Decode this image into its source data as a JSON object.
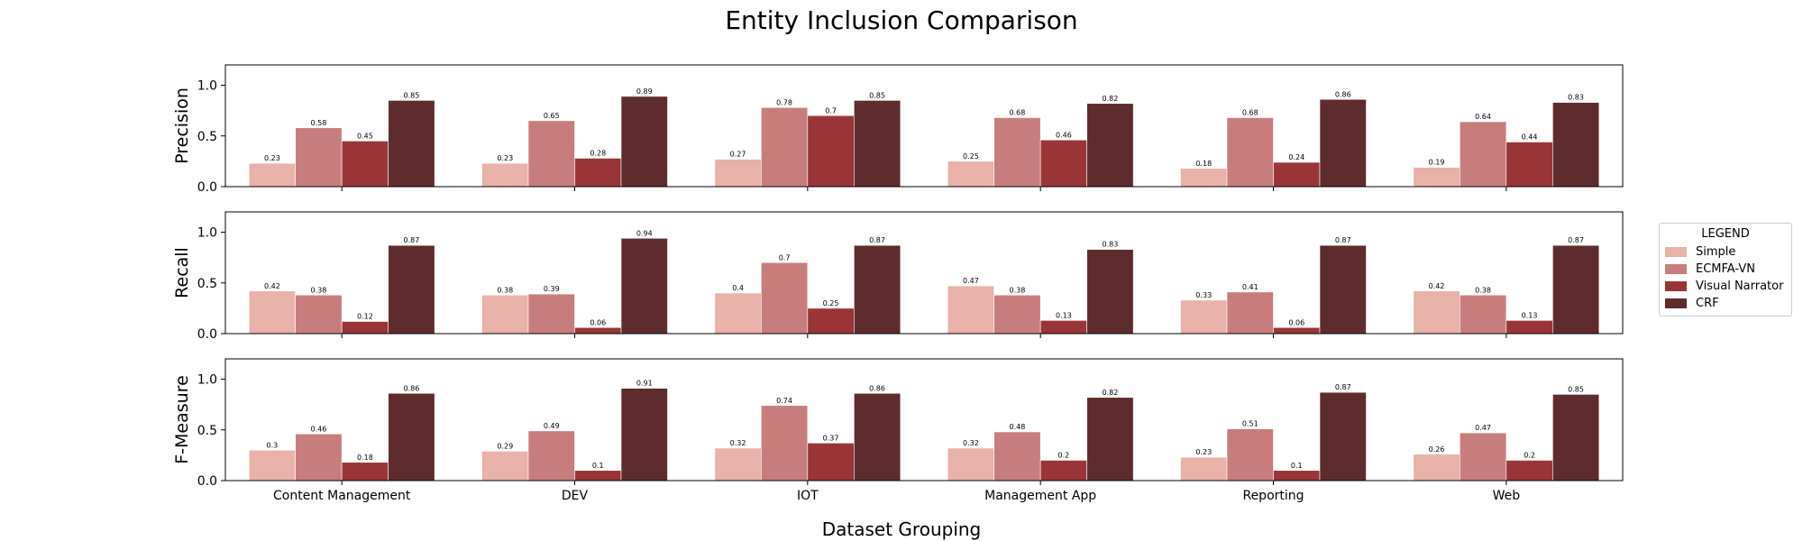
{
  "chart_data": {
    "type": "bar",
    "title": "Entity Inclusion Comparison",
    "xlabel": "Dataset Grouping",
    "categories": [
      "Content Management",
      "DEV",
      "IOT",
      "Management App",
      "Reporting",
      "Web"
    ],
    "legend": {
      "title": "LEGEND",
      "placement": "outside-right",
      "entries": [
        "Simple",
        "ECMFA-VN",
        "Visual Narrator",
        "CRF"
      ]
    },
    "colors": [
      "#e8b2a8",
      "#c87d7d",
      "#9a3537",
      "#5f2c2e"
    ],
    "ylim": [
      0,
      1.2
    ],
    "yticks": [
      0.0,
      0.5,
      1.0
    ],
    "grid": false,
    "panels": [
      {
        "ylabel": "Precision",
        "series": [
          {
            "name": "Simple",
            "values": [
              0.23,
              0.23,
              0.27,
              0.25,
              0.18,
              0.19
            ]
          },
          {
            "name": "ECMFA-VN",
            "values": [
              0.58,
              0.65,
              0.78,
              0.68,
              0.68,
              0.64
            ]
          },
          {
            "name": "Visual Narrator",
            "values": [
              0.45,
              0.28,
              0.7,
              0.46,
              0.24,
              0.44
            ]
          },
          {
            "name": "CRF",
            "values": [
              0.85,
              0.89,
              0.85,
              0.82,
              0.86,
              0.83
            ]
          }
        ]
      },
      {
        "ylabel": "Recall",
        "series": [
          {
            "name": "Simple",
            "values": [
              0.42,
              0.38,
              0.4,
              0.47,
              0.33,
              0.42
            ]
          },
          {
            "name": "ECMFA-VN",
            "values": [
              0.38,
              0.39,
              0.7,
              0.38,
              0.41,
              0.38
            ]
          },
          {
            "name": "Visual Narrator",
            "values": [
              0.12,
              0.06,
              0.25,
              0.13,
              0.06,
              0.13
            ]
          },
          {
            "name": "CRF",
            "values": [
              0.87,
              0.94,
              0.87,
              0.83,
              0.87,
              0.87
            ]
          }
        ]
      },
      {
        "ylabel": "F-Measure",
        "series": [
          {
            "name": "Simple",
            "values": [
              0.3,
              0.29,
              0.32,
              0.32,
              0.23,
              0.26
            ]
          },
          {
            "name": "ECMFA-VN",
            "values": [
              0.46,
              0.49,
              0.74,
              0.48,
              0.51,
              0.47
            ]
          },
          {
            "name": "Visual Narrator",
            "values": [
              0.18,
              0.1,
              0.37,
              0.2,
              0.1,
              0.2
            ]
          },
          {
            "name": "CRF",
            "values": [
              0.86,
              0.91,
              0.86,
              0.82,
              0.87,
              0.85
            ]
          }
        ]
      }
    ]
  }
}
